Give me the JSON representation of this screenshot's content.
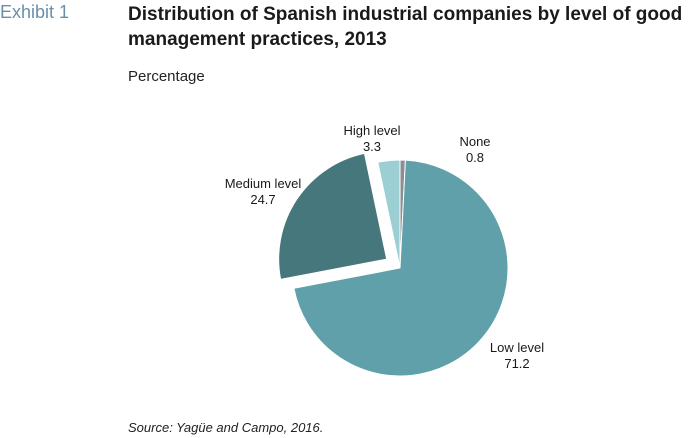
{
  "exhibit": "Exhibit 1",
  "chart_data": {
    "type": "pie",
    "title": "Distribution of Spanish industrial companies by level of good management practices, 2013",
    "subtitle": "Percentage",
    "source": "Source: Yagüe and Campo, 2016.",
    "categories": [
      "None",
      "Low level",
      "Medium level",
      "High level"
    ],
    "values": [
      0.8,
      71.2,
      24.7,
      3.3
    ],
    "value_labels": [
      "0.8",
      "71.2",
      "24.7",
      "3.3"
    ],
    "colors": [
      "#8a8f93",
      "#5fa0aa",
      "#46777c",
      "#9ccfd3"
    ],
    "exploded": [
      false,
      false,
      true,
      false
    ],
    "start_angle_deg": 0,
    "direction": "clockwise",
    "legend": "none"
  }
}
